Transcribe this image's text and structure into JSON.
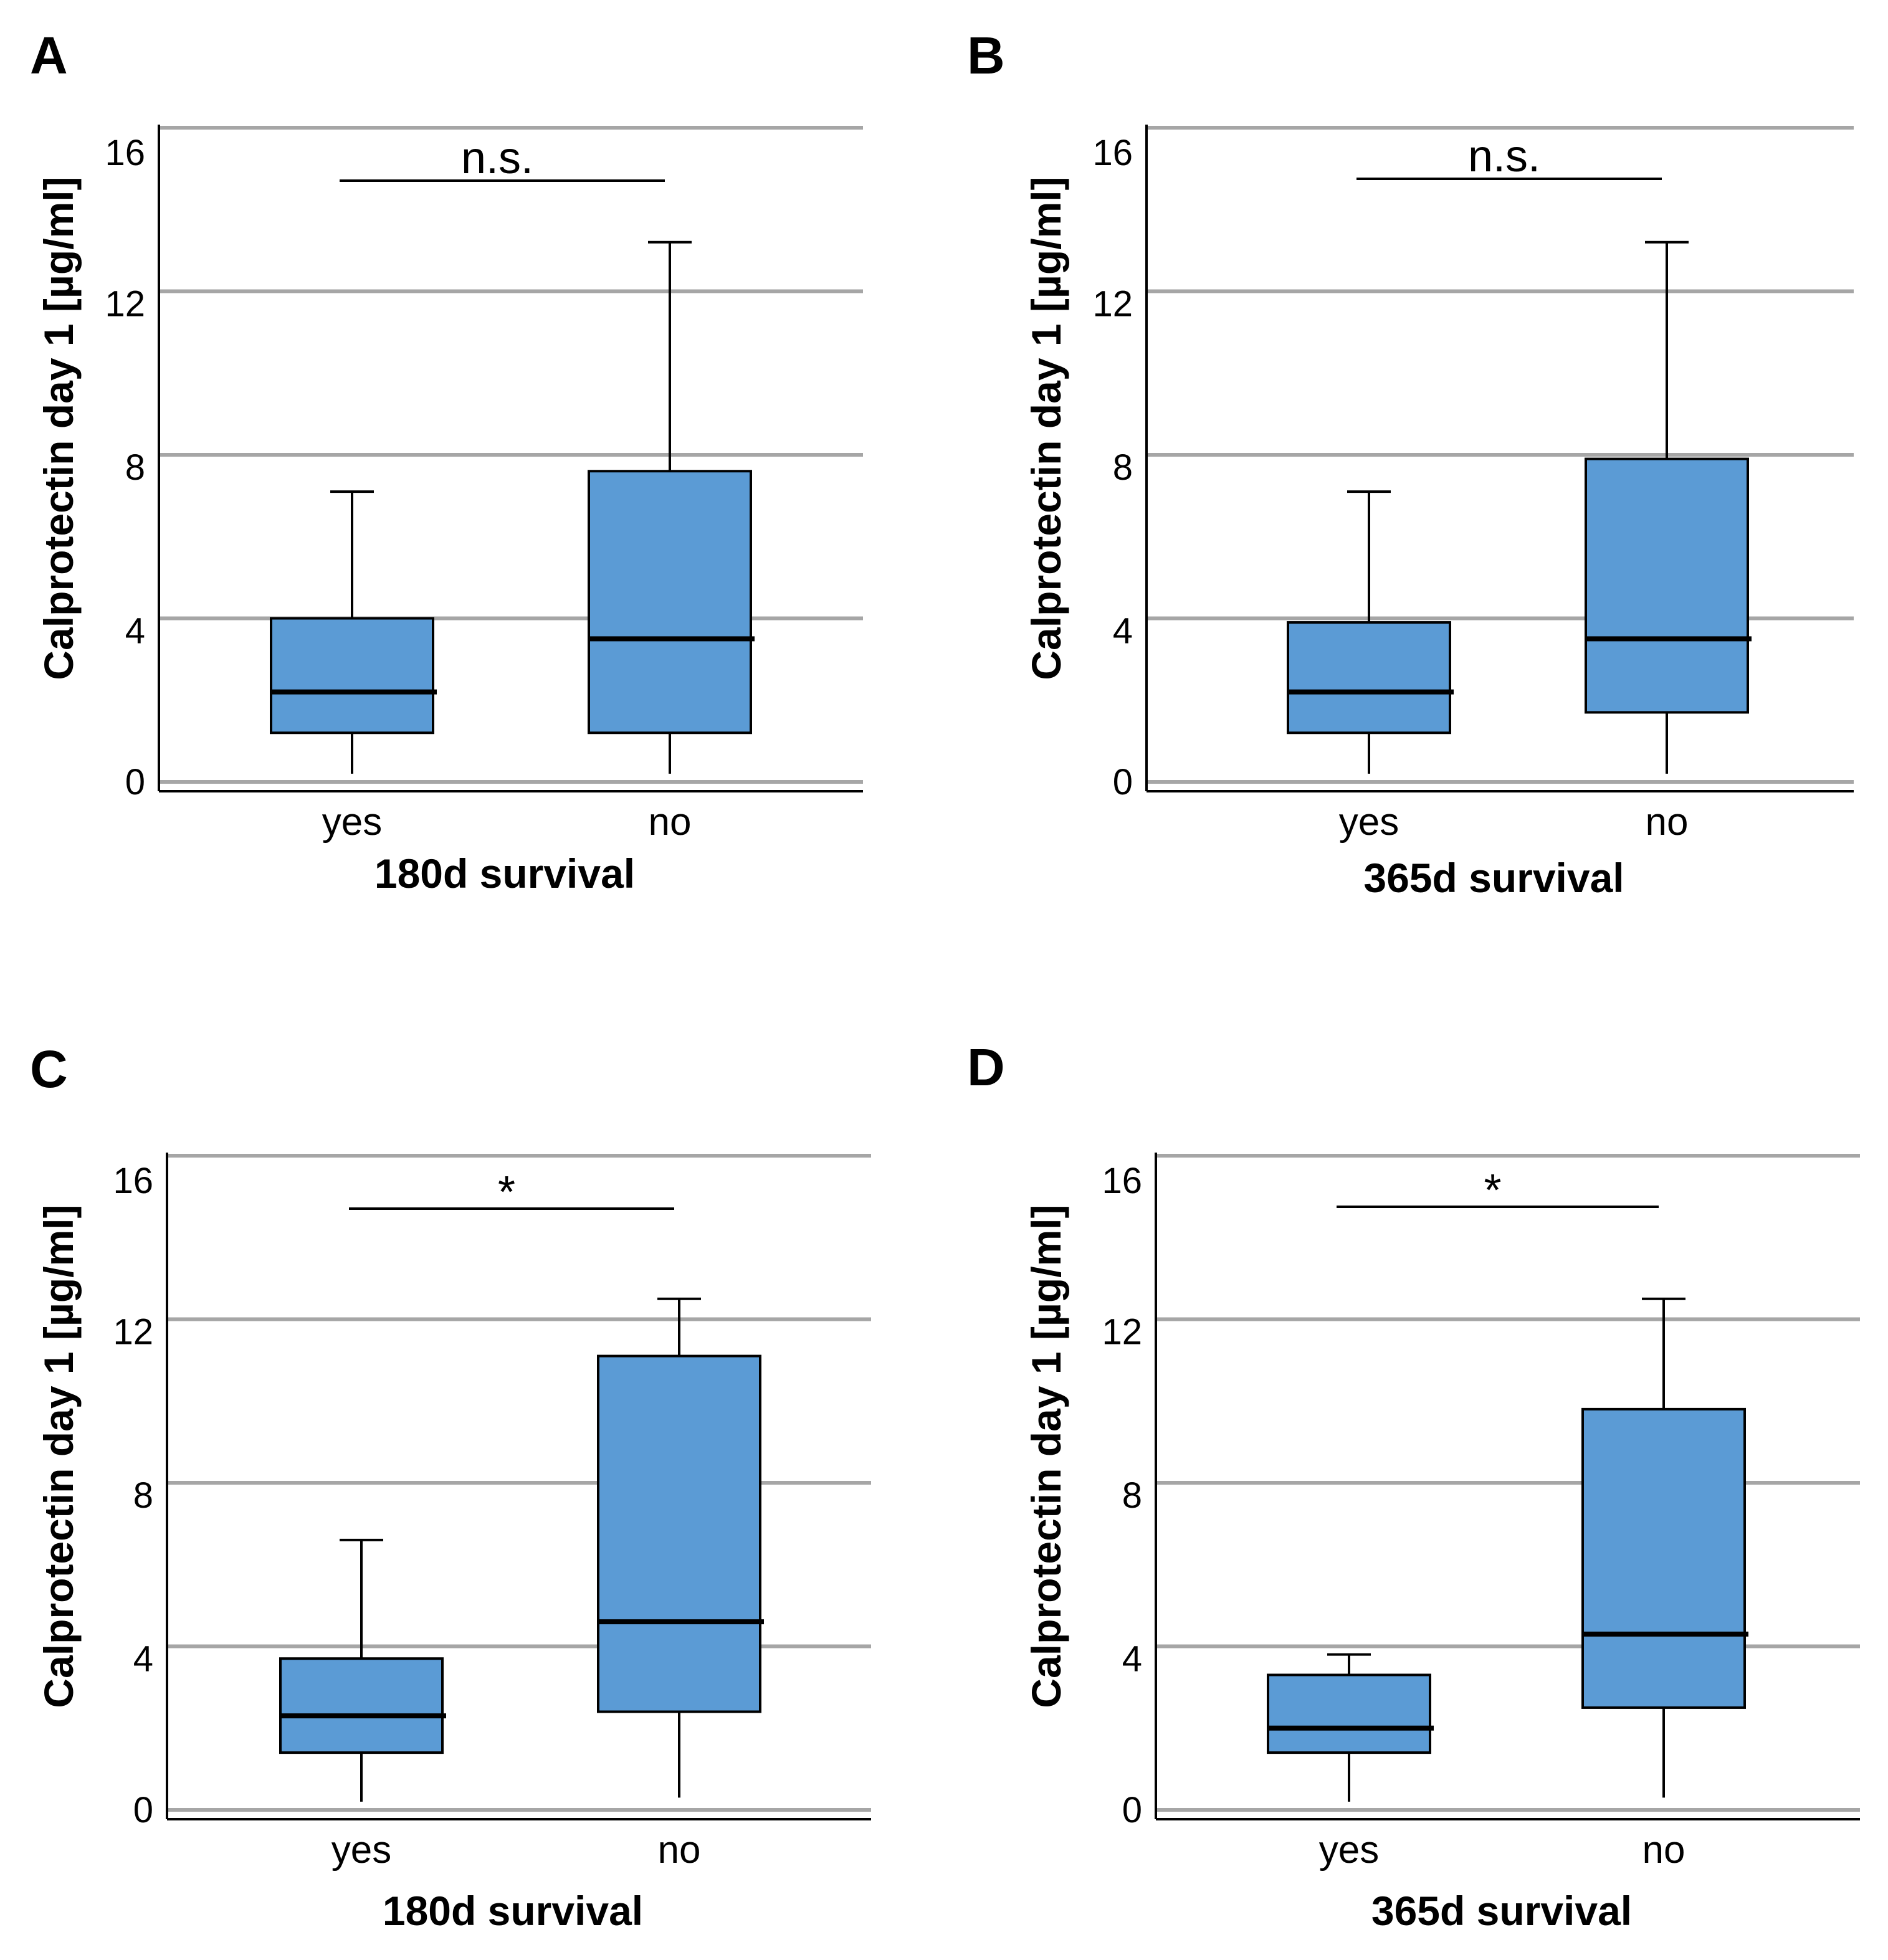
{
  "colors": {
    "box_fill": "#5b9bd5",
    "box_stroke": "#000000",
    "gridline": "#a6a6a6",
    "axis": "#000000"
  },
  "chart_data": [
    {
      "panel": "A",
      "type": "box",
      "xlabel": "180d survival",
      "ylabel": "Calprotectin day 1 [µg/ml]",
      "ylim": [
        0,
        16
      ],
      "yticks": [
        0,
        4,
        8,
        12,
        16
      ],
      "grid": true,
      "categories": [
        "yes",
        "no"
      ],
      "boxes": [
        {
          "category": "yes",
          "min": 0.2,
          "q1": 1.2,
          "median": 2.2,
          "q3": 4.0,
          "max": 7.1
        },
        {
          "category": "no",
          "min": 0.2,
          "q1": 1.2,
          "median": 3.5,
          "q3": 7.6,
          "max": 13.2
        }
      ],
      "significance": {
        "label": "n.s.",
        "from": "yes",
        "to": "no"
      }
    },
    {
      "panel": "B",
      "type": "box",
      "xlabel": "365d survival",
      "ylabel": "Calprotectin day 1 [µg/ml]",
      "ylim": [
        0,
        16
      ],
      "yticks": [
        0,
        4,
        8,
        12,
        16
      ],
      "grid": true,
      "categories": [
        "yes",
        "no"
      ],
      "boxes": [
        {
          "category": "yes",
          "min": 0.2,
          "q1": 1.2,
          "median": 2.2,
          "q3": 3.9,
          "max": 7.1
        },
        {
          "category": "no",
          "min": 0.2,
          "q1": 1.7,
          "median": 3.5,
          "q3": 7.9,
          "max": 13.2
        }
      ],
      "significance": {
        "label": "n.s.",
        "from": "yes",
        "to": "no"
      }
    },
    {
      "panel": "C",
      "type": "box",
      "xlabel": "180d survival",
      "ylabel": "Calprotectin day 1 [µg/ml]",
      "ylim": [
        0,
        16
      ],
      "yticks": [
        0,
        4,
        8,
        12,
        16
      ],
      "grid": true,
      "categories": [
        "yes",
        "no"
      ],
      "boxes": [
        {
          "category": "yes",
          "min": 0.2,
          "q1": 1.4,
          "median": 2.3,
          "q3": 3.7,
          "max": 6.6
        },
        {
          "category": "no",
          "min": 0.3,
          "q1": 2.4,
          "median": 4.6,
          "q3": 11.1,
          "max": 12.5
        }
      ],
      "significance": {
        "label": "*",
        "from": "yes",
        "to": "no"
      }
    },
    {
      "panel": "D",
      "type": "box",
      "xlabel": "365d survival",
      "ylabel": "Calprotectin day 1 [µg/ml]",
      "ylim": [
        0,
        16
      ],
      "yticks": [
        0,
        4,
        8,
        12,
        16
      ],
      "grid": true,
      "categories": [
        "yes",
        "no"
      ],
      "boxes": [
        {
          "category": "yes",
          "min": 0.2,
          "q1": 1.4,
          "median": 2.0,
          "q3": 3.3,
          "max": 3.8
        },
        {
          "category": "no",
          "min": 0.3,
          "q1": 2.5,
          "median": 4.3,
          "q3": 9.8,
          "max": 12.5
        }
      ],
      "significance": {
        "label": "*",
        "from": "yes",
        "to": "no"
      }
    }
  ]
}
